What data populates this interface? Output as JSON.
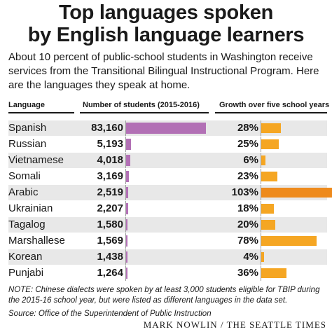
{
  "header": {
    "title_line1": "Top languages spoken",
    "title_line2": "by English language learners",
    "intro": "About 10 percent of public-school students in Washington receive services from the Transitional Bilingual Instructional Program. Here are the languages they speak at home."
  },
  "columns": {
    "language": "Language",
    "students": "Number of students (2015-2016)",
    "growth": "Growth over five school years"
  },
  "footer": {
    "note": "NOTE: Chinese dialects were spoken by at least 3,000 students eligible for TBIP during the 2015-16 school year, but were listed as different languages in the data set.",
    "source": "Source: Office of the Superintendent of Public Instruction",
    "credit": "MARK NOWLIN / THE SEATTLE TIMES"
  },
  "colors": {
    "students_bar": "#b270b5",
    "growth_bar": "#f5a623",
    "growth_bar_highlight": "#ee8a1c",
    "row_shade": "#e8e8e8"
  },
  "chart_data": {
    "type": "table",
    "categories": [
      "Spanish",
      "Russian",
      "Vietnamese",
      "Somali",
      "Arabic",
      "Ukrainian",
      "Tagalog",
      "Marshallese",
      "Korean",
      "Punjabi"
    ],
    "series": [
      {
        "name": "Number of students (2015-2016)",
        "values": [
          83160,
          5193,
          4018,
          3169,
          2519,
          2207,
          1580,
          1569,
          1438,
          1264
        ],
        "labels": [
          "83,160",
          "5,193",
          "4,018",
          "3,169",
          "2,519",
          "2,207",
          "1,580",
          "1,569",
          "1,438",
          "1,264"
        ]
      },
      {
        "name": "Growth over five school years",
        "values": [
          28,
          25,
          6,
          23,
          103,
          18,
          20,
          78,
          4,
          36
        ],
        "labels": [
          "28%",
          "25%",
          "6%",
          "23%",
          "103%",
          "18%",
          "20%",
          "78%",
          "4%",
          "36%"
        ]
      }
    ],
    "students_max": 83160,
    "growth_max": 103
  }
}
